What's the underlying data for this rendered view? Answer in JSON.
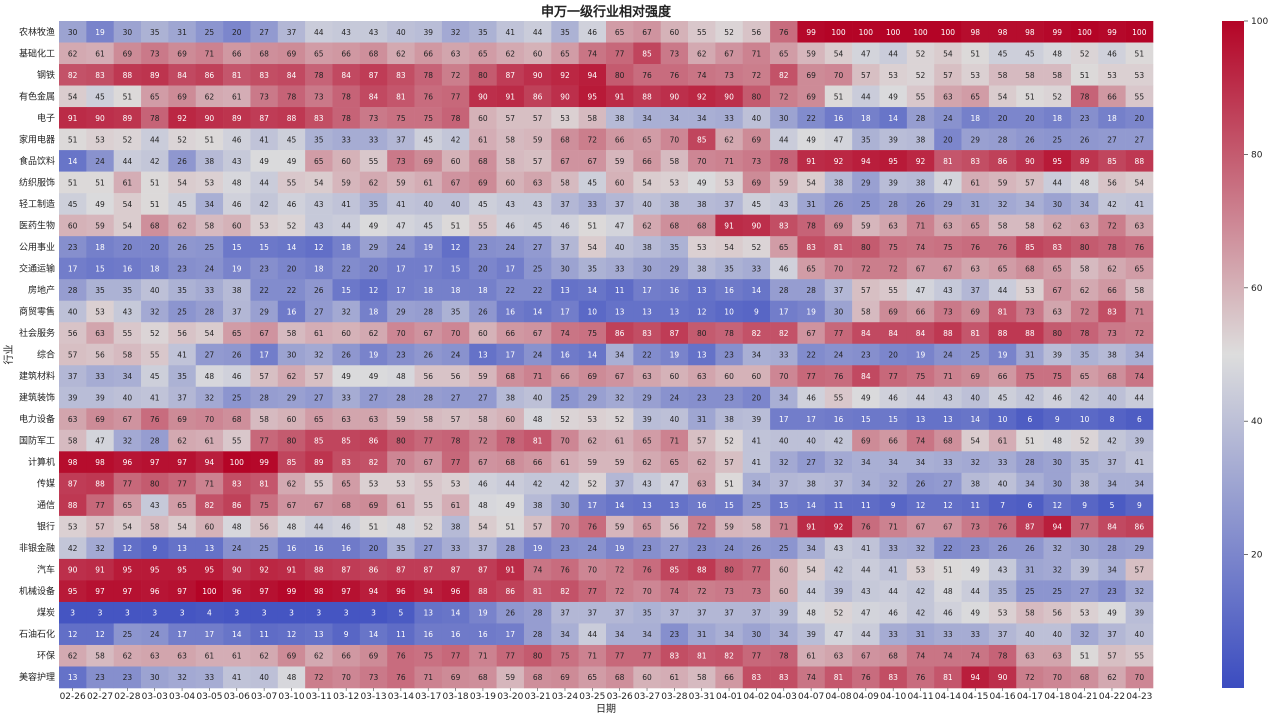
{
  "chart_data": {
    "type": "heatmap",
    "title": "申万一级行业相对强度",
    "xlabel": "日期",
    "ylabel": "行业",
    "colormap": [
      "#3b4cc0",
      "#dddddd",
      "#b40426"
    ],
    "vmin": 0,
    "vmax": 100,
    "colorbar_ticks": [
      20,
      40,
      60,
      80,
      100
    ],
    "x": [
      "02-26",
      "02-27",
      "02-28",
      "03-03",
      "03-04",
      "03-05",
      "03-06",
      "03-07",
      "03-10",
      "03-11",
      "03-12",
      "03-13",
      "03-14",
      "03-17",
      "03-18",
      "03-19",
      "03-20",
      "03-21",
      "03-24",
      "03-25",
      "03-26",
      "03-27",
      "03-28",
      "03-31",
      "04-01",
      "04-02",
      "04-03",
      "04-07",
      "04-08",
      "04-09",
      "04-10",
      "04-11",
      "04-14",
      "04-15",
      "04-16",
      "04-17",
      "04-18",
      "04-21",
      "04-22",
      "04-23"
    ],
    "y": [
      "农林牧渔",
      "基础化工",
      "钢铁",
      "有色金属",
      "电子",
      "家用电器",
      "食品饮料",
      "纺织服饰",
      "轻工制造",
      "医药生物",
      "公用事业",
      "交通运输",
      "房地产",
      "商贸零售",
      "社会服务",
      "综合",
      "建筑材料",
      "建筑装饰",
      "电力设备",
      "国防军工",
      "计算机",
      "传媒",
      "通信",
      "银行",
      "非银金融",
      "汽车",
      "机械设备",
      "煤炭",
      "石油石化",
      "环保",
      "美容护理"
    ],
    "values": [
      [
        30,
        19,
        30,
        35,
        31,
        25,
        20,
        27,
        37,
        44,
        43,
        43,
        40,
        39,
        32,
        35,
        41,
        44,
        35,
        46,
        65,
        67,
        60,
        55,
        52,
        56,
        76,
        99,
        100,
        100,
        100,
        100,
        100,
        98,
        98,
        98,
        99,
        100,
        99,
        100
      ],
      [
        62,
        61,
        69,
        73,
        69,
        71,
        66,
        68,
        69,
        65,
        66,
        68,
        62,
        66,
        63,
        65,
        62,
        60,
        65,
        74,
        77,
        85,
        73,
        62,
        67,
        71,
        65,
        59,
        54,
        47,
        44,
        52,
        54,
        51,
        45,
        45,
        48,
        52,
        46,
        51
      ],
      [
        82,
        83,
        88,
        89,
        84,
        86,
        81,
        83,
        84,
        78,
        84,
        87,
        83,
        78,
        72,
        80,
        87,
        90,
        92,
        94,
        80,
        76,
        76,
        74,
        73,
        72,
        82,
        69,
        70,
        57,
        53,
        52,
        57,
        53,
        58,
        58,
        58,
        51,
        53,
        53
      ],
      [
        54,
        45,
        51,
        65,
        69,
        62,
        61,
        73,
        78,
        73,
        78,
        84,
        81,
        76,
        77,
        90,
        91,
        86,
        90,
        95,
        91,
        88,
        90,
        92,
        90,
        80,
        72,
        69,
        51,
        44,
        49,
        55,
        63,
        65,
        54,
        51,
        52,
        78,
        66,
        55
      ],
      [
        91,
        90,
        89,
        78,
        92,
        90,
        89,
        87,
        88,
        83,
        78,
        73,
        75,
        75,
        78,
        60,
        57,
        57,
        53,
        58,
        38,
        34,
        34,
        34,
        33,
        40,
        30,
        22,
        16,
        18,
        14,
        28,
        24,
        18,
        20,
        20,
        18,
        23,
        18,
        20
      ],
      [
        51,
        53,
        52,
        44,
        52,
        51,
        46,
        41,
        45,
        35,
        33,
        33,
        37,
        45,
        42,
        61,
        58,
        59,
        68,
        72,
        66,
        65,
        70,
        85,
        62,
        69,
        44,
        49,
        47,
        35,
        39,
        38,
        20,
        29,
        28,
        26,
        25,
        26,
        27,
        27
      ],
      [
        14,
        24,
        44,
        42,
        26,
        38,
        43,
        49,
        49,
        65,
        60,
        55,
        73,
        69,
        60,
        68,
        58,
        57,
        67,
        67,
        59,
        66,
        58,
        70,
        71,
        73,
        78,
        91,
        92,
        94,
        95,
        92,
        81,
        83,
        86,
        90,
        95,
        89,
        85,
        88
      ],
      [
        51,
        51,
        61,
        51,
        54,
        53,
        48,
        44,
        55,
        54,
        59,
        62,
        59,
        61,
        67,
        69,
        60,
        63,
        58,
        45,
        60,
        54,
        53,
        49,
        53,
        69,
        59,
        54,
        38,
        29,
        39,
        38,
        47,
        61,
        59,
        57,
        44,
        48,
        56,
        54
      ],
      [
        45,
        49,
        54,
        51,
        45,
        34,
        46,
        42,
        46,
        43,
        41,
        35,
        41,
        40,
        40,
        45,
        43,
        43,
        37,
        33,
        37,
        40,
        38,
        38,
        37,
        45,
        43,
        31,
        26,
        25,
        28,
        26,
        29,
        31,
        32,
        34,
        30,
        34,
        42,
        41
      ],
      [
        60,
        59,
        54,
        68,
        62,
        58,
        60,
        53,
        52,
        43,
        44,
        49,
        47,
        45,
        51,
        55,
        46,
        45,
        46,
        51,
        47,
        62,
        68,
        68,
        91,
        90,
        83,
        78,
        69,
        59,
        63,
        71,
        63,
        65,
        58,
        58,
        62,
        63,
        72,
        63
      ],
      [
        23,
        18,
        20,
        20,
        26,
        25,
        15,
        15,
        14,
        12,
        18,
        29,
        24,
        19,
        12,
        23,
        24,
        27,
        37,
        54,
        40,
        38,
        35,
        53,
        54,
        52,
        65,
        83,
        81,
        80,
        75,
        74,
        75,
        76,
        76,
        85,
        83,
        80,
        78,
        76
      ],
      [
        17,
        15,
        16,
        18,
        23,
        24,
        19,
        23,
        20,
        18,
        22,
        20,
        17,
        17,
        15,
        20,
        17,
        25,
        30,
        35,
        33,
        30,
        29,
        38,
        35,
        33,
        46,
        65,
        70,
        72,
        72,
        67,
        67,
        63,
        65,
        68,
        65,
        58,
        62,
        65
      ],
      [
        28,
        35,
        35,
        40,
        35,
        33,
        38,
        22,
        22,
        26,
        15,
        12,
        17,
        18,
        18,
        18,
        22,
        22,
        13,
        14,
        11,
        17,
        16,
        13,
        16,
        14,
        28,
        28,
        37,
        57,
        55,
        47,
        43,
        37,
        44,
        53,
        67,
        62,
        66,
        58
      ],
      [
        40,
        53,
        43,
        32,
        25,
        28,
        37,
        29,
        16,
        27,
        32,
        18,
        29,
        28,
        35,
        26,
        16,
        14,
        17,
        10,
        13,
        13,
        13,
        12,
        10,
        9,
        17,
        19,
        30,
        58,
        69,
        66,
        73,
        69,
        81,
        73,
        63,
        72,
        83,
        71
      ],
      [
        56,
        63,
        55,
        52,
        56,
        54,
        65,
        67,
        58,
        61,
        60,
        62,
        70,
        67,
        70,
        60,
        66,
        67,
        74,
        75,
        86,
        83,
        87,
        80,
        78,
        82,
        82,
        67,
        77,
        84,
        84,
        84,
        88,
        81,
        88,
        88,
        80,
        78,
        73,
        72
      ],
      [
        57,
        56,
        58,
        55,
        41,
        27,
        26,
        17,
        30,
        32,
        26,
        19,
        23,
        26,
        24,
        13,
        17,
        24,
        16,
        14,
        34,
        22,
        19,
        13,
        23,
        34,
        33,
        22,
        24,
        23,
        20,
        19,
        24,
        25,
        19,
        31,
        39,
        35,
        38,
        34
      ],
      [
        37,
        33,
        34,
        45,
        35,
        48,
        46,
        57,
        62,
        57,
        49,
        49,
        48,
        56,
        56,
        59,
        68,
        71,
        66,
        69,
        67,
        63,
        60,
        63,
        60,
        60,
        70,
        77,
        76,
        84,
        77,
        75,
        71,
        69,
        66,
        75,
        75,
        65,
        68,
        74
      ],
      [
        39,
        39,
        40,
        41,
        37,
        32,
        25,
        28,
        29,
        27,
        33,
        27,
        28,
        28,
        27,
        27,
        38,
        40,
        25,
        29,
        32,
        29,
        24,
        23,
        23,
        20,
        34,
        46,
        55,
        49,
        46,
        44,
        43,
        40,
        45,
        42,
        46,
        42,
        40,
        44
      ],
      [
        63,
        69,
        67,
        76,
        69,
        70,
        68,
        58,
        60,
        65,
        63,
        63,
        59,
        58,
        57,
        58,
        60,
        48,
        52,
        53,
        52,
        39,
        40,
        31,
        38,
        39,
        17,
        17,
        16,
        15,
        15,
        13,
        13,
        14,
        10,
        6,
        9,
        10,
        8,
        6
      ],
      [
        58,
        47,
        32,
        28,
        62,
        61,
        55,
        77,
        80,
        85,
        85,
        86,
        80,
        77,
        78,
        72,
        78,
        81,
        70,
        62,
        61,
        65,
        71,
        57,
        52,
        41,
        40,
        40,
        42,
        69,
        66,
        74,
        68,
        54,
        61,
        51,
        48,
        52,
        42,
        39
      ],
      [
        98,
        98,
        96,
        97,
        97,
        94,
        100,
        99,
        85,
        89,
        83,
        82,
        70,
        67,
        77,
        67,
        68,
        66,
        61,
        59,
        59,
        62,
        65,
        62,
        57,
        41,
        32,
        27,
        32,
        34,
        34,
        34,
        33,
        32,
        33,
        28,
        30,
        35,
        37,
        41
      ],
      [
        87,
        88,
        77,
        80,
        77,
        71,
        83,
        81,
        62,
        55,
        65,
        53,
        53,
        55,
        53,
        46,
        44,
        42,
        42,
        52,
        37,
        43,
        47,
        63,
        51,
        34,
        37,
        38,
        37,
        34,
        32,
        26,
        27,
        38,
        40,
        34,
        30,
        38,
        34,
        34
      ],
      [
        88,
        77,
        65,
        43,
        65,
        82,
        86,
        75,
        67,
        67,
        68,
        69,
        61,
        55,
        61,
        48,
        49,
        38,
        30,
        17,
        14,
        13,
        13,
        16,
        15,
        25,
        15,
        14,
        11,
        11,
        9,
        12,
        12,
        11,
        7,
        6,
        12,
        9,
        5,
        9
      ],
      [
        53,
        57,
        54,
        58,
        54,
        60,
        48,
        56,
        48,
        44,
        46,
        51,
        48,
        52,
        38,
        54,
        51,
        57,
        70,
        76,
        59,
        65,
        56,
        72,
        59,
        58,
        71,
        91,
        92,
        76,
        71,
        67,
        67,
        73,
        76,
        87,
        94,
        77,
        84,
        86
      ],
      [
        42,
        32,
        12,
        9,
        13,
        13,
        24,
        25,
        16,
        16,
        16,
        20,
        35,
        27,
        33,
        37,
        28,
        19,
        23,
        24,
        19,
        23,
        27,
        23,
        24,
        26,
        25,
        34,
        43,
        41,
        33,
        32,
        22,
        23,
        26,
        26,
        32,
        30,
        28,
        29
      ],
      [
        90,
        91,
        95,
        95,
        95,
        95,
        90,
        92,
        91,
        88,
        87,
        86,
        87,
        87,
        87,
        87,
        91,
        74,
        76,
        70,
        72,
        76,
        85,
        88,
        80,
        77,
        60,
        54,
        42,
        44,
        41,
        53,
        51,
        49,
        43,
        31,
        32,
        39,
        34,
        57
      ],
      [
        95,
        97,
        97,
        96,
        97,
        100,
        96,
        97,
        99,
        98,
        97,
        94,
        96,
        94,
        96,
        88,
        86,
        81,
        82,
        77,
        72,
        70,
        74,
        72,
        73,
        73,
        60,
        44,
        39,
        43,
        44,
        42,
        48,
        44,
        35,
        25,
        25,
        27,
        23,
        32
      ],
      [
        3,
        3,
        3,
        3,
        3,
        4,
        3,
        3,
        3,
        3,
        3,
        3,
        5,
        13,
        14,
        19,
        26,
        28,
        37,
        37,
        37,
        35,
        37,
        37,
        37,
        37,
        39,
        48,
        52,
        47,
        46,
        42,
        46,
        49,
        53,
        58,
        56,
        53,
        49,
        39
      ],
      [
        12,
        12,
        25,
        24,
        17,
        17,
        14,
        11,
        12,
        13,
        9,
        14,
        11,
        16,
        16,
        16,
        17,
        28,
        34,
        44,
        34,
        34,
        23,
        31,
        34,
        30,
        34,
        39,
        47,
        44,
        33,
        31,
        33,
        33,
        37,
        40,
        40,
        32,
        37,
        40
      ],
      [
        62,
        58,
        62,
        63,
        63,
        61,
        61,
        62,
        69,
        62,
        66,
        69,
        76,
        75,
        77,
        71,
        77,
        80,
        75,
        71,
        77,
        77,
        83,
        81,
        82,
        77,
        78,
        61,
        63,
        67,
        68,
        74,
        74,
        74,
        78,
        63,
        63,
        51,
        57,
        55
      ],
      [
        13,
        23,
        23,
        30,
        32,
        33,
        41,
        40,
        48,
        72,
        70,
        73,
        76,
        71,
        69,
        68,
        59,
        68,
        69,
        65,
        68,
        60,
        61,
        58,
        66,
        83,
        83,
        74,
        81,
        76,
        83,
        76,
        81,
        94,
        90,
        72,
        70,
        68,
        62,
        70
      ]
    ]
  }
}
